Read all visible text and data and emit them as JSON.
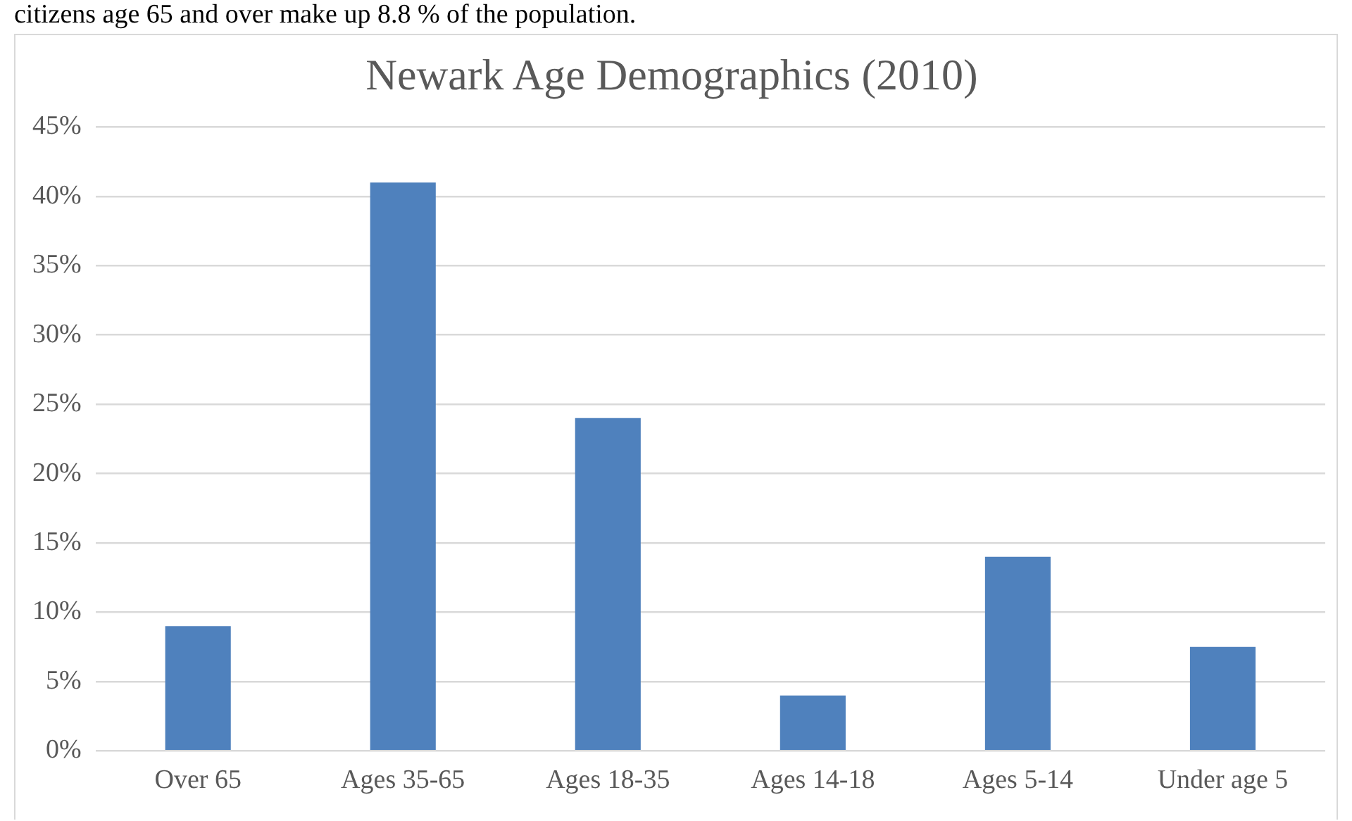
{
  "chart_data": {
    "type": "bar",
    "title": "Newark Age Demographics (2010)",
    "annotations": [
      "citizens age 65 and over make up 8.8 % of the population."
    ],
    "categories": [
      "Over 65",
      "Ages 35-65",
      "Ages 18-35",
      "Ages 14-18",
      "Ages 5-14",
      "Under age 5"
    ],
    "values": [
      9,
      41,
      24,
      4,
      14,
      7.5
    ],
    "color": "#4f81bd",
    "ylim": [
      0,
      45
    ],
    "yticks": [
      {
        "value": 0,
        "label": "0%"
      },
      {
        "value": 5,
        "label": "5%"
      },
      {
        "value": 10,
        "label": "10%"
      },
      {
        "value": 15,
        "label": "15%"
      },
      {
        "value": 20,
        "label": "20%"
      },
      {
        "value": 25,
        "label": "25%"
      },
      {
        "value": 30,
        "label": "30%"
      },
      {
        "value": 35,
        "label": "35%"
      },
      {
        "value": 40,
        "label": "40%"
      },
      {
        "value": 45,
        "label": "45%"
      }
    ],
    "grid": "y",
    "legend": false
  }
}
